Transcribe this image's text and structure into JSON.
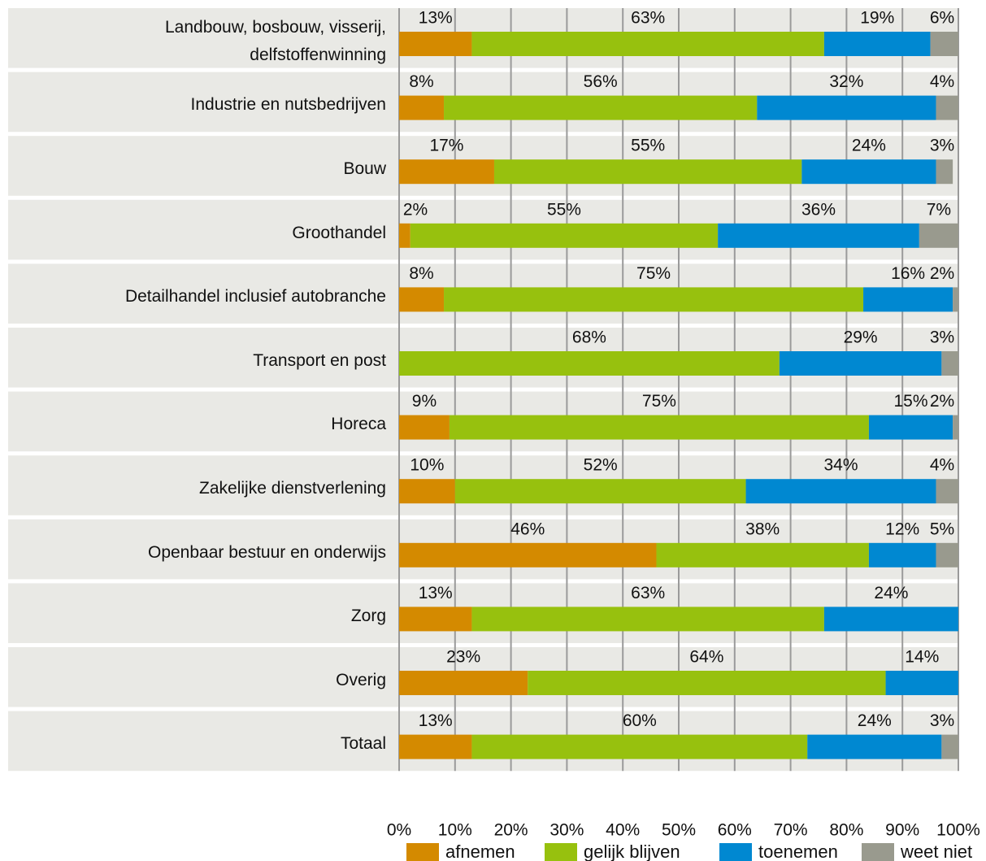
{
  "chart_data": {
    "type": "stacked-barh",
    "categories": [
      "Landbouw, bosbouw, visserij, delfstoffenwinning",
      "Industrie en nutsbedrijven",
      "Bouw",
      "Groothandel",
      "Detailhandel inclusief autobranche",
      "Transport en post",
      "Horeca",
      "Zakelijke dienstverlening",
      "Openbaar bestuur en onderwijs",
      "Zorg",
      "Overig",
      "Totaal"
    ],
    "series": [
      {
        "name": "afnemen",
        "color": "#d48a00",
        "values": [
          13,
          8,
          17,
          2,
          8,
          null,
          9,
          10,
          46,
          13,
          23,
          13
        ],
        "value_labels": [
          "13%",
          "8%",
          "17%",
          "2%",
          "8%",
          null,
          "9%",
          "10%",
          "46%",
          "13%",
          "23%",
          "13%"
        ]
      },
      {
        "name": "gelijk blijven",
        "color": "#97c10e",
        "values": [
          63,
          56,
          55,
          55,
          75,
          68,
          75,
          52,
          38,
          63,
          64,
          60
        ],
        "value_labels": [
          "63%",
          "56%",
          "55%",
          "55%",
          "75%",
          "68%",
          "75%",
          "52%",
          "38%",
          "63%",
          "64%",
          "60%"
        ]
      },
      {
        "name": "toenemen",
        "color": "#0088d1",
        "values": [
          19,
          32,
          24,
          36,
          16,
          29,
          15,
          34,
          12,
          24,
          14,
          24
        ],
        "value_labels": [
          "19%",
          "32%",
          "24%",
          "36%",
          "16%",
          "29%",
          "15%",
          "34%",
          "12%",
          "24%",
          "14%",
          "24%"
        ]
      },
      {
        "name": "weet niet",
        "color": "#999a8e",
        "values": [
          6,
          4,
          3,
          7,
          2,
          3,
          2,
          4,
          5,
          null,
          null,
          3
        ],
        "value_labels": [
          "6%",
          "4%",
          "3%",
          "7%",
          "2%",
          "3%",
          "2%",
          "4%",
          "5%",
          null,
          null,
          "3%"
        ]
      }
    ],
    "xlim": [
      0,
      100
    ],
    "xticks": [
      {
        "value": 0,
        "label": "0%"
      },
      {
        "value": 10,
        "label": "10%"
      },
      {
        "value": 20,
        "label": "20%"
      },
      {
        "value": 30,
        "label": "30%"
      },
      {
        "value": 40,
        "label": "40%"
      },
      {
        "value": 50,
        "label": "50%"
      },
      {
        "value": 60,
        "label": "60%"
      },
      {
        "value": 70,
        "label": "70%"
      },
      {
        "value": 80,
        "label": "80%"
      },
      {
        "value": 90,
        "label": "90%"
      },
      {
        "value": 100,
        "label": "100%"
      }
    ],
    "grid": true,
    "legend": "bottom"
  }
}
